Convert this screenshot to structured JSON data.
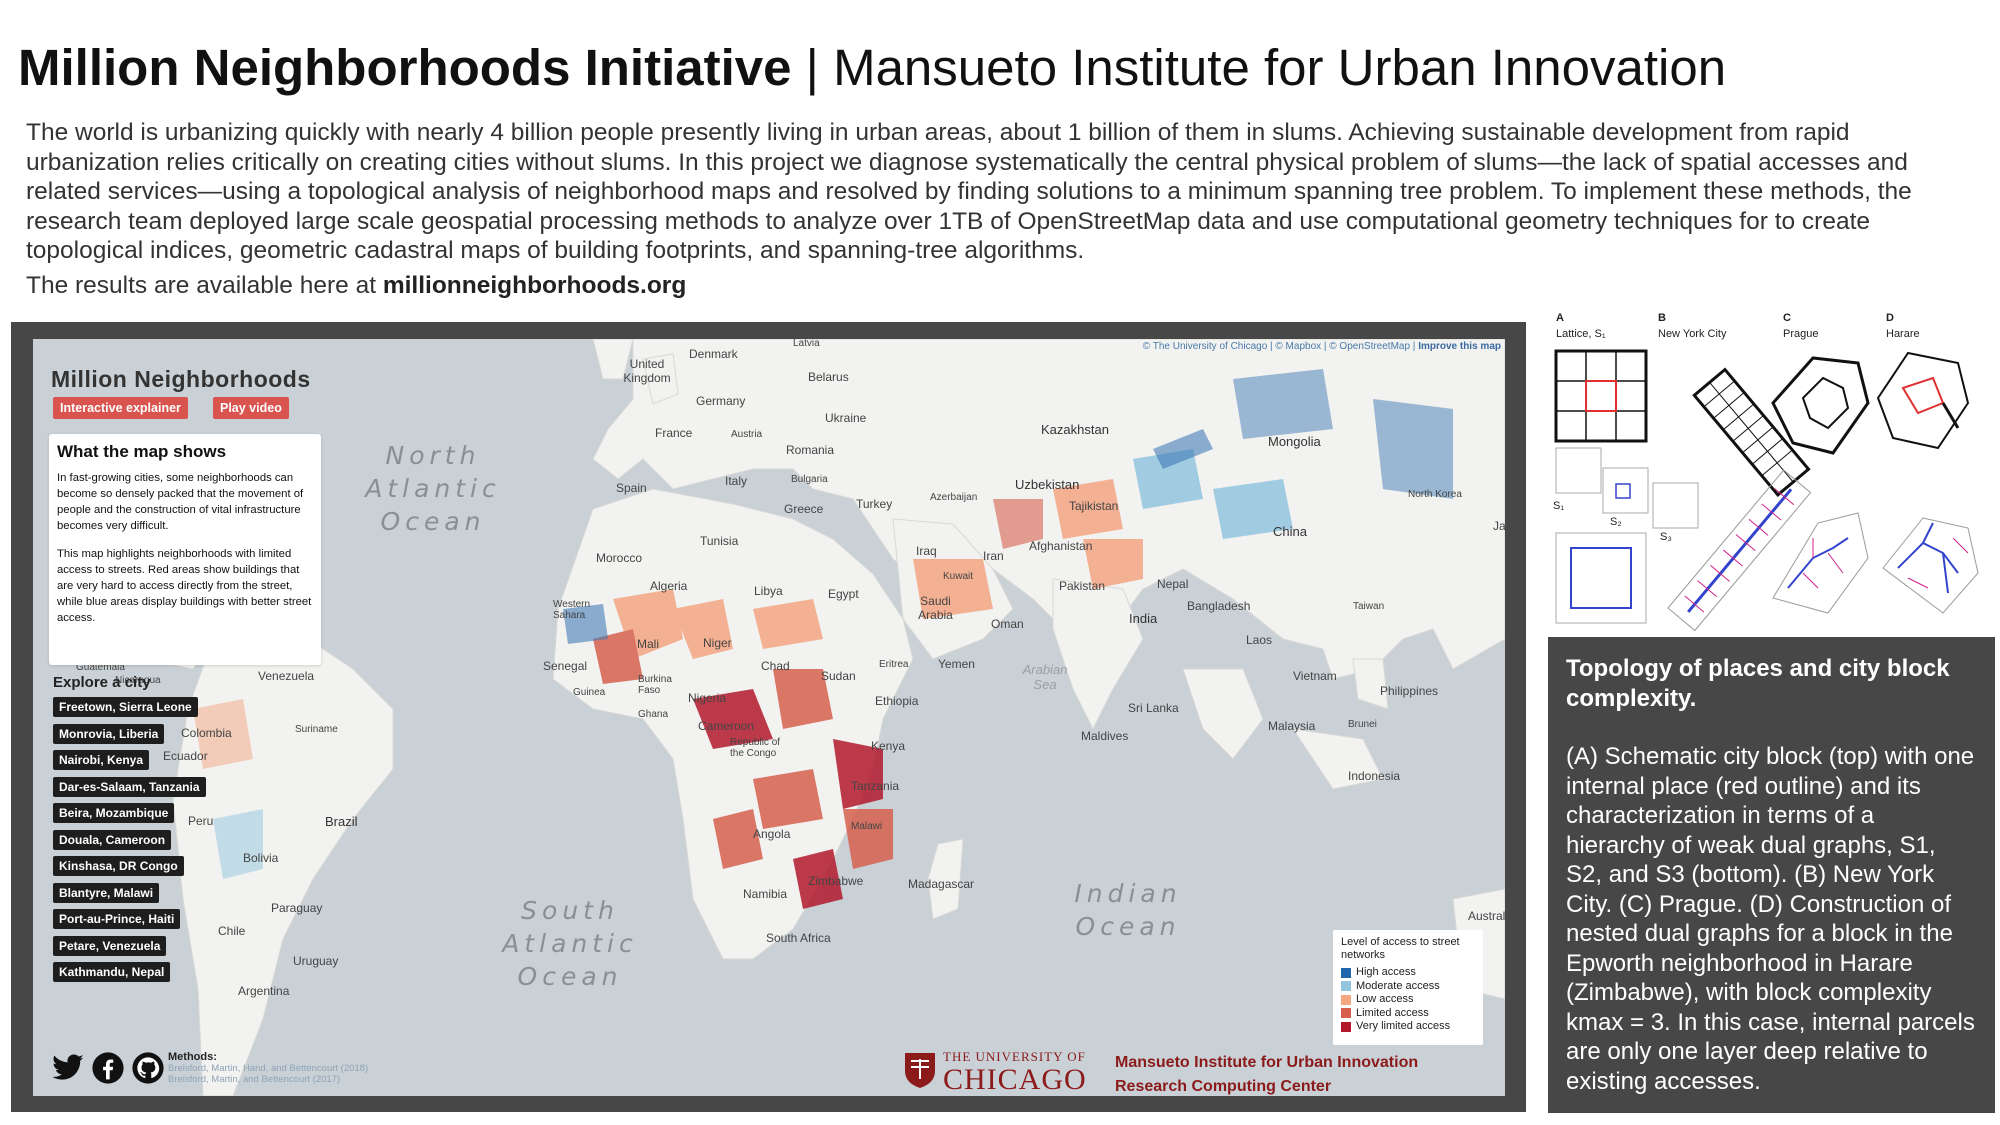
{
  "header": {
    "title_bold": "Million Neighborhoods Initiative",
    "title_rest": " | Mansueto Institute for Urban Innovation",
    "intro": "The world is urbanizing quickly with nearly 4 billion people presently living in urban areas, about 1 billion of them in slums. Achieving sustainable development from rapid urbanization relies critically on creating cities without slums. In this project we diagnose systematically the central physical problem of slums—the lack of spatial accesses and related services—using a topological analysis of neighborhood maps and resolved by finding solutions to a minimum spanning tree problem. To implement these methods, the research team deployed large scale geospatial processing methods to analyze over 1TB of OpenStreetMap data and use computational geometry techniques for to create topological indices, geometric cadastral maps of building footprints, and spanning-tree algorithms.",
    "results_prefix": "The results are available here at ",
    "results_link": "millionneighborhoods.org"
  },
  "map": {
    "attribution": "© The University of Chicago | © Mapbox | © OpenStreetMap | ",
    "attribution_link": "Improve this map",
    "panel_title": "Million Neighborhoods",
    "buttons": [
      "Interactive explainer",
      "Play video"
    ],
    "info_title": "What the map shows",
    "info_p1": "In fast-growing cities, some neighborhoods can become so densely packed that the movement of people and the construction of vital infrastructure becomes very difficult.",
    "info_p2": "This map highlights neighborhoods with limited access to streets. Red areas show buildings that are very hard to access directly from the street, while blue areas display buildings with better street access.",
    "explore_title": "Explore a city",
    "cities": [
      "Freetown, Sierra Leone",
      "Monrovia, Liberia",
      "Nairobi, Kenya",
      "Dar-es-Salaam, Tanzania",
      "Beira, Mozambique",
      "Douala, Cameroon",
      "Kinshasa, DR Congo",
      "Blantyre, Malawi",
      "Port-au-Prince, Haiti",
      "Petare, Venezuela",
      "Kathmandu, Nepal"
    ],
    "oceans": {
      "north_atlantic": [
        "North",
        "Atlantic",
        "Ocean"
      ],
      "south_atlantic": [
        "South",
        "Atlantic",
        "Ocean"
      ],
      "indian": [
        "Indian",
        "Ocean"
      ],
      "arabian": [
        "Arabian",
        "Sea"
      ]
    },
    "places": {
      "denmark": "Denmark",
      "latvia": "Latvia",
      "uk": "United Kingdom",
      "belarus": "Belarus",
      "germany": "Germany",
      "ukraine": "Ukraine",
      "france": "France",
      "austria": "Austria",
      "romania": "Romania",
      "kazakhstan": "Kazakhstan",
      "mongolia": "Mongolia",
      "bulgaria": "Bulgaria",
      "spain": "Spain",
      "italy": "Italy",
      "uzbekistan": "Uzbekistan",
      "azerbaijan": "Azerbaijan",
      "greece": "Greece",
      "turkey": "Turkey",
      "tajikistan": "Tajikistan",
      "north_korea": "North Korea",
      "china": "China",
      "tunisia": "Tunisia",
      "morocco": "Morocco",
      "iraq": "Iraq",
      "iran": "Iran",
      "afghanistan": "Afghanistan",
      "algeria": "Algeria",
      "libya": "Libya",
      "egypt": "Egypt",
      "kuwait": "Kuwait",
      "pakistan": "Pakistan",
      "nepal": "Nepal",
      "western_sahara": "Western Sahara",
      "saudi": "Saudi Arabia",
      "oman": "Oman",
      "india": "India",
      "bangladesh": "Bangladesh",
      "taiwan": "Taiwan",
      "mali": "Mali",
      "niger": "Niger",
      "laos": "Laos",
      "senegal": "Senegal",
      "chad": "Chad",
      "sudan": "Sudan",
      "eritrea": "Eritrea",
      "yemen": "Yemen",
      "guinea": "Guinea",
      "burkina": "Burkina Faso",
      "nigeria": "Nigeria",
      "ethiopia": "Ethiopia",
      "vietnam": "Vietnam",
      "philippines": "Philippines",
      "ghana": "Ghana",
      "cameroon": "Cameroon",
      "sri_lanka": "Sri Lanka",
      "maldives": "Maldives",
      "malaysia": "Malaysia",
      "brunei": "Brunei",
      "venezuela": "Venezuela",
      "suriname": "Suriname",
      "colombia": "Colombia",
      "ecuador": "Ecuador",
      "congo": "Republic of the Congo",
      "kenya": "Kenya",
      "indonesia": "Indonesia",
      "tanzania": "Tanzania",
      "brazil": "Brazil",
      "peru": "Peru",
      "angola": "Angola",
      "malawi": "Malawi",
      "bolivia": "Bolivia",
      "zimbabwe": "Zimbabwe",
      "madagascar": "Madagascar",
      "namibia": "Namibia",
      "paraguay": "Paraguay",
      "chile": "Chile",
      "south_africa": "South Africa",
      "uruguay": "Uruguay",
      "argentina": "Argentina",
      "australia": "Austral",
      "guatemala": "Guatemala",
      "nicaragua": "Nicaragua",
      "japan": "Ja"
    },
    "legend_title": "Level of access to street networks",
    "legend": [
      {
        "label": "High access",
        "color": "#2166ac"
      },
      {
        "label": "Moderate access",
        "color": "#92c5de"
      },
      {
        "label": "Low access",
        "color": "#f4a582"
      },
      {
        "label": "Limited access",
        "color": "#d6604d"
      },
      {
        "label": "Very limited access",
        "color": "#b2182b"
      }
    ],
    "methods_label": "Methods:",
    "methods_refs": [
      "Brelsford, Martin, Hand, and Bettencourt (2018)",
      "Brelsford, Martin, and Bettencourt (2017)"
    ],
    "uoc_small": "THE UNIVERSITY OF",
    "uoc_big": "CHICAGO",
    "mansueto_lines": [
      "Mansueto Institute for Urban Innovation",
      "Research Computing Center"
    ]
  },
  "figure": {
    "panels": [
      {
        "letter": "A",
        "name": "Lattice, S₁"
      },
      {
        "letter": "B",
        "name": "New York City"
      },
      {
        "letter": "C",
        "name": "Prague"
      },
      {
        "letter": "D",
        "name": "Harare"
      }
    ],
    "s_labels": [
      "S₁",
      "S₂",
      "S₃"
    ],
    "caption_title": "Topology of places and city block complexity.",
    "caption_body": "(A) Schematic city block (top) with one internal place (red outline) and its characterization in terms of a hierarchy of weak dual graphs, S1, S2, and S3 (bottom). (B) New York City. (C) Prague. (D) Construction of nested dual graphs for a block in the Epworth neighborhood in Harare (Zimbabwe), with block complexity kmax = 3. In this case, internal parcels are only one layer deep relative to existing accesses."
  },
  "colors": {
    "accent_red": "#d9534f",
    "frame": "#474747",
    "ocean": "#c9d1d6",
    "land": "#f2f2f0",
    "uchicago": "#8b1a1a"
  }
}
